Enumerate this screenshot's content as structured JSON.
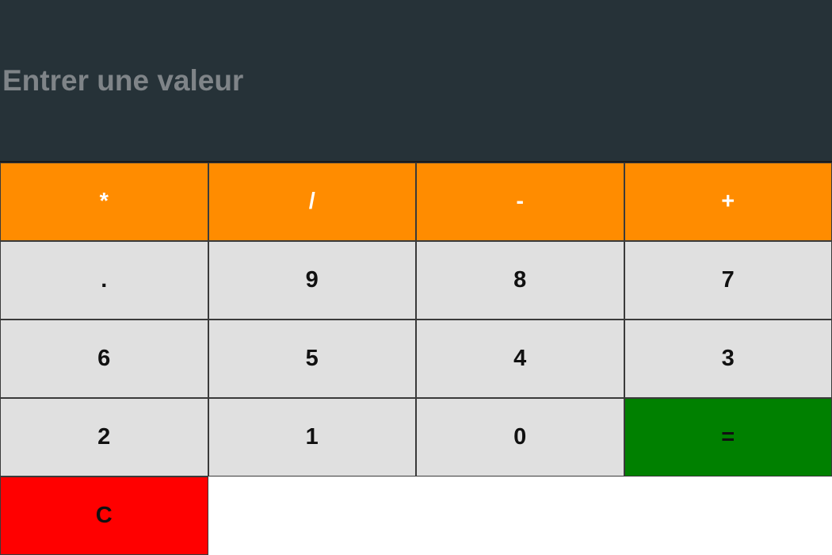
{
  "display": {
    "placeholder": "Entrer une valeur",
    "value": ""
  },
  "operators": [
    {
      "label": "*",
      "name": "multiply-button"
    },
    {
      "label": "/",
      "name": "divide-button"
    },
    {
      "label": "-",
      "name": "subtract-button"
    },
    {
      "label": "+",
      "name": "add-button"
    }
  ],
  "rows": [
    [
      {
        "label": ".",
        "name": "decimal-button"
      },
      {
        "label": "9",
        "name": "digit-9-button"
      },
      {
        "label": "8",
        "name": "digit-8-button"
      },
      {
        "label": "7",
        "name": "digit-7-button"
      }
    ],
    [
      {
        "label": "6",
        "name": "digit-6-button"
      },
      {
        "label": "5",
        "name": "digit-5-button"
      },
      {
        "label": "4",
        "name": "digit-4-button"
      },
      {
        "label": "3",
        "name": "digit-3-button"
      }
    ],
    [
      {
        "label": "2",
        "name": "digit-2-button"
      },
      {
        "label": "1",
        "name": "digit-1-button"
      },
      {
        "label": "0",
        "name": "digit-0-button"
      }
    ]
  ],
  "equals": {
    "label": "="
  },
  "clear": {
    "label": "C"
  },
  "colors": {
    "display_bg": "#263238",
    "operator_bg": "#ff8c00",
    "digit_bg": "#e0e0e0",
    "equals_bg": "#008000",
    "clear_bg": "#ff0000"
  }
}
